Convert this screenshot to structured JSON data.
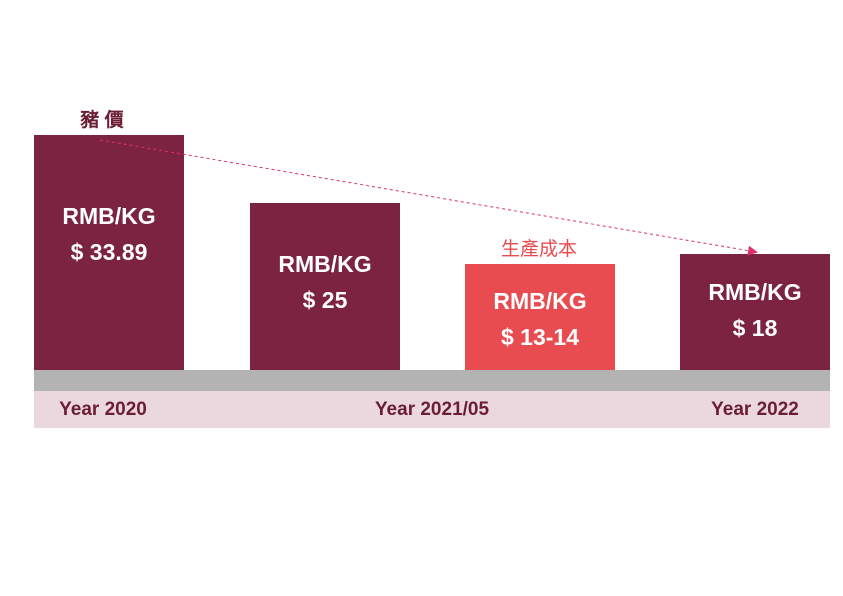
{
  "price_label": "豬 價",
  "cost_label": "生產成本",
  "bars": [
    {
      "unit": "RMB/KG",
      "price": "$ 33.89"
    },
    {
      "unit": "RMB/KG",
      "price": "$ 25"
    },
    {
      "unit": "RMB/KG",
      "price": "$ 13-14"
    },
    {
      "unit": "RMB/KG",
      "price": "$ 18"
    }
  ],
  "periods": [
    "Year 2020",
    "Year 2021/05",
    "Year 2022"
  ]
}
